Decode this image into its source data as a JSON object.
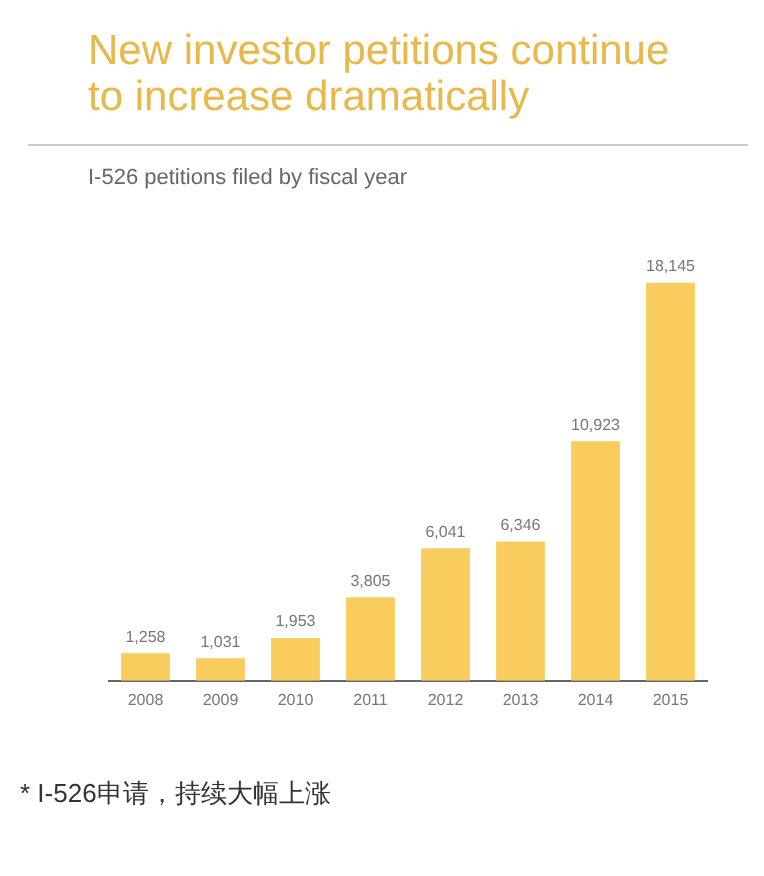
{
  "chart_data": {
    "type": "bar",
    "title": "New investor petitions continue to increase dramatically",
    "subtitle": "I-526 petitions filed by fiscal year",
    "categories": [
      "2008",
      "2009",
      "2010",
      "2011",
      "2012",
      "2013",
      "2014",
      "2015"
    ],
    "values": [
      1258,
      1031,
      1953,
      3805,
      6041,
      6346,
      10923,
      18145
    ],
    "value_labels": [
      "1,258",
      "1,031",
      "1,953",
      "3,805",
      "6,041",
      "6,346",
      "10,923",
      "18,145"
    ],
    "color": "#f9cc5e",
    "grid": false,
    "legend": false,
    "annotations": [
      "* I-526申请，持续大幅上涨"
    ]
  }
}
